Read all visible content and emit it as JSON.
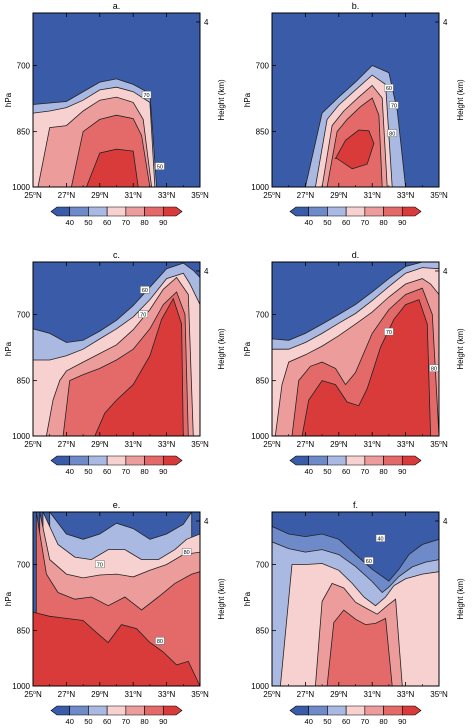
{
  "chart_data": [
    {
      "type": "heatmap",
      "panel": "a.",
      "xlabel": "",
      "ylabel": "hPa",
      "y2label": "Height (km)",
      "x_ticks": [
        "25",
        "27",
        "29",
        "31",
        "33",
        "35"
      ],
      "x_tick_suffix": "N",
      "y_ticks": [
        "700",
        "850",
        "1000"
      ],
      "y2_ticks": [
        "4"
      ],
      "xlim": [
        25,
        35
      ],
      "ylim_hPa": [
        1000,
        600
      ],
      "contour_labels": [
        "70",
        "50"
      ],
      "colorbar": {
        "labels": [
          "40",
          "50",
          "60",
          "70",
          "80",
          "90"
        ]
      },
      "boundaries": [
        {
          "level": 50,
          "x": [
            25,
            27,
            29,
            30,
            31,
            32,
            32.4,
            33,
            35
          ],
          "p": [
            785,
            778,
            735,
            728,
            740,
            760,
            1000,
            1000,
            1000
          ]
        },
        {
          "level": 60,
          "x": [
            25,
            26,
            27,
            28,
            29,
            30,
            31,
            32,
            32.3
          ],
          "p": [
            805,
            800,
            792,
            775,
            752,
            746,
            756,
            780,
            1000
          ]
        },
        {
          "level": 70,
          "x": [
            25.3,
            26,
            27,
            28,
            29,
            30,
            31,
            31.6,
            32.1
          ],
          "p": [
            1000,
            840,
            835,
            800,
            775,
            768,
            780,
            820,
            1000
          ]
        },
        {
          "level": 80,
          "x": [
            27.3,
            28,
            29,
            30,
            31,
            31.5,
            32
          ],
          "p": [
            1000,
            850,
            820,
            810,
            818,
            860,
            1000
          ]
        },
        {
          "level": 90,
          "x": [
            28.2,
            29,
            30,
            31,
            31.3
          ],
          "p": [
            1000,
            905,
            895,
            900,
            1000
          ]
        }
      ]
    },
    {
      "type": "heatmap",
      "panel": "b.",
      "xlabel": "",
      "ylabel": "hPa",
      "y2label": "Height (km)",
      "x_ticks": [
        "25",
        "27",
        "29",
        "31",
        "33",
        "35"
      ],
      "x_tick_suffix": "N",
      "y_ticks": [
        "700",
        "850",
        "1000"
      ],
      "y2_ticks": [
        "4"
      ],
      "xlim": [
        25,
        35
      ],
      "ylim_hPa": [
        1000,
        600
      ],
      "contour_labels": [
        "60",
        "70",
        "80"
      ],
      "colorbar": {
        "labels": [
          "40",
          "50",
          "60",
          "70",
          "80",
          "90"
        ]
      },
      "boundaries": [
        {
          "level": 50,
          "x": [
            27,
            28,
            29,
            30,
            31,
            32,
            32.5,
            33
          ],
          "p": [
            1000,
            805,
            768,
            735,
            700,
            715,
            800,
            1000
          ]
        },
        {
          "level": 60,
          "x": [
            27.6,
            28.3,
            29,
            30,
            31,
            31.8,
            32.2
          ],
          "p": [
            1000,
            820,
            786,
            752,
            720,
            740,
            1000
          ]
        },
        {
          "level": 70,
          "x": [
            28,
            28.6,
            29.3,
            30.2,
            31,
            31.6,
            31.9
          ],
          "p": [
            1000,
            835,
            800,
            768,
            742,
            770,
            1000
          ]
        },
        {
          "level": 80,
          "x": [
            28.3,
            28.9,
            29.5,
            30.3,
            31,
            31.4,
            31.6
          ],
          "p": [
            1000,
            850,
            820,
            790,
            770,
            810,
            1000
          ]
        },
        {
          "level": 90,
          "x": [
            28.8,
            29.4,
            30.2,
            30.8,
            31.1,
            30.7,
            29.8,
            28.9
          ],
          "p": [
            920,
            872,
            846,
            848,
            880,
            935,
            948,
            920
          ]
        }
      ]
    },
    {
      "type": "heatmap",
      "panel": "c.",
      "xlabel": "",
      "ylabel": "hPa",
      "y2label": "Height (km)",
      "x_ticks": [
        "25",
        "27",
        "29",
        "31",
        "33",
        "35"
      ],
      "x_tick_suffix": "N",
      "y_ticks": [
        "700",
        "850",
        "1000"
      ],
      "y2_ticks": [
        "4"
      ],
      "xlim": [
        25,
        35
      ],
      "ylim_hPa": [
        1000,
        600
      ],
      "contour_labels": [
        "60",
        "70"
      ],
      "colorbar": {
        "labels": [
          "40",
          "50",
          "60",
          "70",
          "80",
          "90"
        ]
      },
      "boundaries": [
        {
          "level": 50,
          "x": [
            25,
            26,
            27,
            28,
            29,
            30,
            31,
            32,
            33,
            34,
            34.6,
            35
          ],
          "p": [
            730,
            740,
            760,
            755,
            735,
            712,
            682,
            646,
            612,
            602,
            615,
            628
          ]
        },
        {
          "level": 60,
          "x": [
            25,
            26,
            27,
            28,
            29,
            30,
            31,
            32,
            33,
            34,
            34.4,
            35
          ],
          "p": [
            800,
            800,
            790,
            775,
            752,
            730,
            705,
            670,
            630,
            620,
            640,
            680
          ]
        },
        {
          "level": 70,
          "x": [
            25.8,
            26.2,
            26.6,
            27,
            28,
            29,
            30,
            31,
            32,
            32.8,
            33.6,
            34.3,
            34.6
          ],
          "p": [
            1000,
            900,
            850,
            826,
            805,
            785,
            765,
            732,
            690,
            650,
            628,
            660,
            1000
          ]
        },
        {
          "level": 80,
          "x": [
            26.8,
            27.2,
            28,
            29,
            30,
            31,
            32,
            32.8,
            33.6,
            34.1,
            34.3
          ],
          "p": [
            1000,
            850,
            835,
            820,
            800,
            775,
            730,
            680,
            655,
            700,
            1000
          ]
        },
        {
          "level": 90,
          "x": [
            28.7,
            29.3,
            30,
            31,
            32,
            32.7,
            33.4,
            33.9,
            34
          ],
          "p": [
            1000,
            935,
            900,
            860,
            790,
            710,
            668,
            720,
            1000
          ]
        }
      ]
    },
    {
      "type": "heatmap",
      "panel": "d.",
      "xlabel": "",
      "ylabel": "hPa",
      "y2label": "Height (km)",
      "x_ticks": [
        "25",
        "27",
        "29",
        "31",
        "33",
        "35"
      ],
      "x_tick_suffix": "N",
      "y_ticks": [
        "700",
        "850",
        "1000"
      ],
      "y2_ticks": [
        "4"
      ],
      "xlim": [
        25,
        35
      ],
      "ylim_hPa": [
        1000,
        600
      ],
      "contour_labels": [
        "70",
        "80"
      ],
      "colorbar": {
        "labels": [
          "40",
          "50",
          "60",
          "70",
          "80",
          "90"
        ]
      },
      "boundaries": [
        {
          "level": 50,
          "x": [
            25,
            26,
            27,
            28,
            29,
            30,
            31,
            32,
            33,
            34,
            35
          ],
          "p": [
            752,
            755,
            740,
            720,
            700,
            680,
            655,
            630,
            608,
            600,
            600
          ]
        },
        {
          "level": 60,
          "x": [
            25,
            26,
            27,
            28,
            29,
            30,
            31,
            32,
            33,
            34,
            35
          ],
          "p": [
            775,
            775,
            760,
            740,
            718,
            698,
            672,
            645,
            620,
            610,
            612
          ]
        },
        {
          "level": 70,
          "x": [
            25.2,
            25.6,
            26,
            27,
            28,
            29,
            30,
            31,
            32,
            33,
            34,
            34.5,
            35
          ],
          "p": [
            1000,
            860,
            805,
            788,
            768,
            745,
            720,
            695,
            665,
            640,
            630,
            640,
            660
          ]
        },
        {
          "level": 80,
          "x": [
            26.2,
            26.6,
            27.3,
            28,
            28.8,
            29.4,
            30,
            31,
            32,
            33,
            34,
            34.6,
            35
          ],
          "p": [
            1000,
            850,
            815,
            805,
            820,
            860,
            830,
            740,
            690,
            660,
            648,
            700,
            1000
          ]
        },
        {
          "level": 90,
          "x": [
            26.8,
            27.2,
            28,
            28.8,
            29.5,
            30.2,
            30.7,
            31.5,
            32.3,
            33,
            33.8,
            34.3,
            34.5
          ],
          "p": [
            1000,
            900,
            850,
            860,
            905,
            915,
            870,
            770,
            710,
            680,
            670,
            720,
            1000
          ]
        }
      ]
    },
    {
      "type": "heatmap",
      "panel": "e.",
      "xlabel": "",
      "ylabel": "hPa",
      "y2label": "Height (km)",
      "x_ticks": [
        "25",
        "27",
        "29",
        "31",
        "33",
        "35"
      ],
      "x_tick_suffix": "N",
      "y_ticks": [
        "700",
        "850",
        "1000"
      ],
      "y2_ticks": [
        "4"
      ],
      "xlim": [
        25,
        35
      ],
      "ylim_hPa": [
        1000,
        600
      ],
      "contour_labels": [
        "80",
        "70",
        "80"
      ],
      "colorbar": {
        "labels": [
          "40",
          "50",
          "60",
          "70",
          "80",
          "90"
        ]
      },
      "boundaries": [
        {
          "level": 50,
          "x": [
            26,
            27,
            28,
            29,
            30,
            31,
            32,
            33,
            34,
            34.5
          ],
          "p": [
            600,
            640,
            650,
            640,
            620,
            630,
            650,
            640,
            622,
            600
          ]
        },
        {
          "level": 60,
          "x": [
            25.6,
            26.5,
            27.5,
            28.5,
            29.5,
            30.5,
            31.5,
            32.5,
            33.5,
            34.2,
            35
          ],
          "p": [
            600,
            660,
            685,
            690,
            670,
            670,
            690,
            690,
            670,
            650,
            640
          ]
        },
        {
          "level": 70,
          "x": [
            25.4,
            26,
            27,
            28,
            29,
            30,
            31,
            32,
            33,
            34,
            35
          ],
          "p": [
            600,
            690,
            720,
            728,
            722,
            720,
            726,
            712,
            700,
            680,
            675
          ]
        },
        {
          "level": 80,
          "x": [
            25.2,
            25.8,
            26.5,
            27.5,
            28.5,
            29.5,
            30.5,
            31.5,
            32.5,
            33.5,
            34.5,
            35
          ],
          "p": [
            600,
            720,
            760,
            775,
            770,
            790,
            770,
            800,
            770,
            740,
            720,
            715
          ]
        },
        {
          "level": 90,
          "x": [
            25,
            26,
            27,
            28,
            28.8,
            29.5,
            30.3,
            31.2,
            32,
            32.8,
            33.6,
            34.3,
            35
          ],
          "p": [
            805,
            815,
            820,
            825,
            855,
            880,
            835,
            845,
            880,
            905,
            940,
            930,
            1000
          ]
        }
      ]
    },
    {
      "type": "heatmap",
      "panel": "f.",
      "xlabel": "",
      "ylabel": "hPa",
      "y2label": "Height (km)",
      "x_ticks": [
        "25",
        "27",
        "29",
        "31",
        "33",
        "35"
      ],
      "x_tick_suffix": "N",
      "y_ticks": [
        "700",
        "850",
        "1000"
      ],
      "y2_ticks": [
        "4"
      ],
      "xlim": [
        25,
        35
      ],
      "ylim_hPa": [
        1000,
        600
      ],
      "contour_labels": [
        "40",
        "60"
      ],
      "colorbar": {
        "labels": [
          "40",
          "50",
          "60",
          "70",
          "80",
          "90"
        ]
      },
      "boundaries": [
        {
          "level": 40,
          "x": [
            25,
            26,
            27,
            28,
            29,
            30,
            31,
            32,
            32.6,
            33.2,
            34,
            35
          ],
          "p": [
            626,
            640,
            645,
            640,
            650,
            680,
            710,
            735,
            710,
            680,
            660,
            650
          ]
        },
        {
          "level": 50,
          "x": [
            25,
            26,
            27,
            28,
            29,
            30,
            31,
            31.6,
            32,
            32.6,
            33.4,
            34.2,
            35
          ],
          "p": [
            655,
            668,
            675,
            670,
            680,
            704,
            736,
            760,
            748,
            725,
            705,
            695,
            690
          ]
        },
        {
          "level": 60,
          "x": [
            25.5,
            26.2,
            27,
            28,
            29,
            29.8,
            30.5,
            31.2,
            31.8,
            32.3,
            33,
            34,
            35
          ],
          "p": [
            1000,
            700,
            700,
            698,
            712,
            740,
            770,
            790,
            770,
            745,
            730,
            720,
            715
          ]
        },
        {
          "level": 70,
          "x": [
            27.6,
            28,
            28.6,
            29.3,
            30,
            30.6,
            31.3,
            31.9,
            32.4,
            32.8
          ],
          "p": [
            1000,
            780,
            740,
            750,
            782,
            795,
            810,
            790,
            775,
            1000
          ]
        },
        {
          "level": 80,
          "x": [
            28.3,
            28.7,
            29.3,
            30,
            30.6,
            31.2,
            31.8,
            32.2
          ],
          "p": [
            1000,
            830,
            800,
            822,
            835,
            832,
            820,
            1000
          ]
        }
      ]
    }
  ]
}
